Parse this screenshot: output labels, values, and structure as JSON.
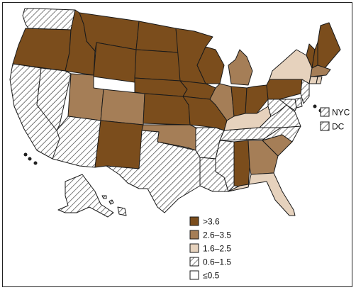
{
  "legend": {
    "items": [
      {
        "label": ">3.6",
        "fill": "dark"
      },
      {
        "label": "2.6–3.5",
        "fill": "medium"
      },
      {
        "label": "1.6–2.5",
        "fill": "light"
      },
      {
        "label": "0.6–1.5",
        "fill": "hatch"
      },
      {
        "label": "≤0.5",
        "fill": "white"
      }
    ]
  },
  "extra_jurisdictions": [
    {
      "label": "NYC",
      "fill": "hatch"
    },
    {
      "label": "DC",
      "fill": "hatch"
    }
  ],
  "colors": {
    "dark": "#7b4d1c",
    "medium": "#a57e57",
    "light": "#e6d2bd",
    "hatch_line": "#333333",
    "border": "#1a1a1a"
  },
  "states": [
    {
      "name": "WA",
      "fill": "hatch"
    },
    {
      "name": "OR",
      "fill": "dark"
    },
    {
      "name": "CA",
      "fill": "hatch"
    },
    {
      "name": "NV",
      "fill": "hatch"
    },
    {
      "name": "ID",
      "fill": "dark"
    },
    {
      "name": "MT",
      "fill": "dark"
    },
    {
      "name": "WY",
      "fill": "dark"
    },
    {
      "name": "UT",
      "fill": "medium"
    },
    {
      "name": "CO",
      "fill": "medium"
    },
    {
      "name": "AZ",
      "fill": "hatch"
    },
    {
      "name": "NM",
      "fill": "dark"
    },
    {
      "name": "ND",
      "fill": "dark"
    },
    {
      "name": "SD",
      "fill": "dark"
    },
    {
      "name": "NE",
      "fill": "dark"
    },
    {
      "name": "KS",
      "fill": "dark"
    },
    {
      "name": "OK",
      "fill": "medium"
    },
    {
      "name": "TX",
      "fill": "hatch"
    },
    {
      "name": "MN",
      "fill": "dark"
    },
    {
      "name": "IA",
      "fill": "dark"
    },
    {
      "name": "MO",
      "fill": "dark"
    },
    {
      "name": "AR",
      "fill": "hatch"
    },
    {
      "name": "LA",
      "fill": "hatch"
    },
    {
      "name": "WI",
      "fill": "dark"
    },
    {
      "name": "IL",
      "fill": "medium"
    },
    {
      "name": "MI",
      "fill": "medium"
    },
    {
      "name": "IN",
      "fill": "dark"
    },
    {
      "name": "OH",
      "fill": "dark"
    },
    {
      "name": "KY",
      "fill": "light"
    },
    {
      "name": "TN",
      "fill": "hatch"
    },
    {
      "name": "MS",
      "fill": "hatch"
    },
    {
      "name": "AL",
      "fill": "dark"
    },
    {
      "name": "GA",
      "fill": "medium"
    },
    {
      "name": "FL",
      "fill": "light"
    },
    {
      "name": "SC",
      "fill": "medium"
    },
    {
      "name": "NC",
      "fill": "hatch"
    },
    {
      "name": "VA",
      "fill": "hatch"
    },
    {
      "name": "WV",
      "fill": "hatch"
    },
    {
      "name": "PA",
      "fill": "dark"
    },
    {
      "name": "NY",
      "fill": "light"
    },
    {
      "name": "VT",
      "fill": "dark"
    },
    {
      "name": "NH",
      "fill": "dark"
    },
    {
      "name": "ME",
      "fill": "dark"
    },
    {
      "name": "MA",
      "fill": "medium"
    },
    {
      "name": "CT",
      "fill": "light"
    },
    {
      "name": "RI",
      "fill": "light"
    },
    {
      "name": "NJ",
      "fill": "hatch"
    },
    {
      "name": "DE",
      "fill": "hatch"
    },
    {
      "name": "MD",
      "fill": "hatch"
    },
    {
      "name": "AK",
      "fill": "hatch"
    },
    {
      "name": "HI",
      "fill": "hatch"
    }
  ]
}
